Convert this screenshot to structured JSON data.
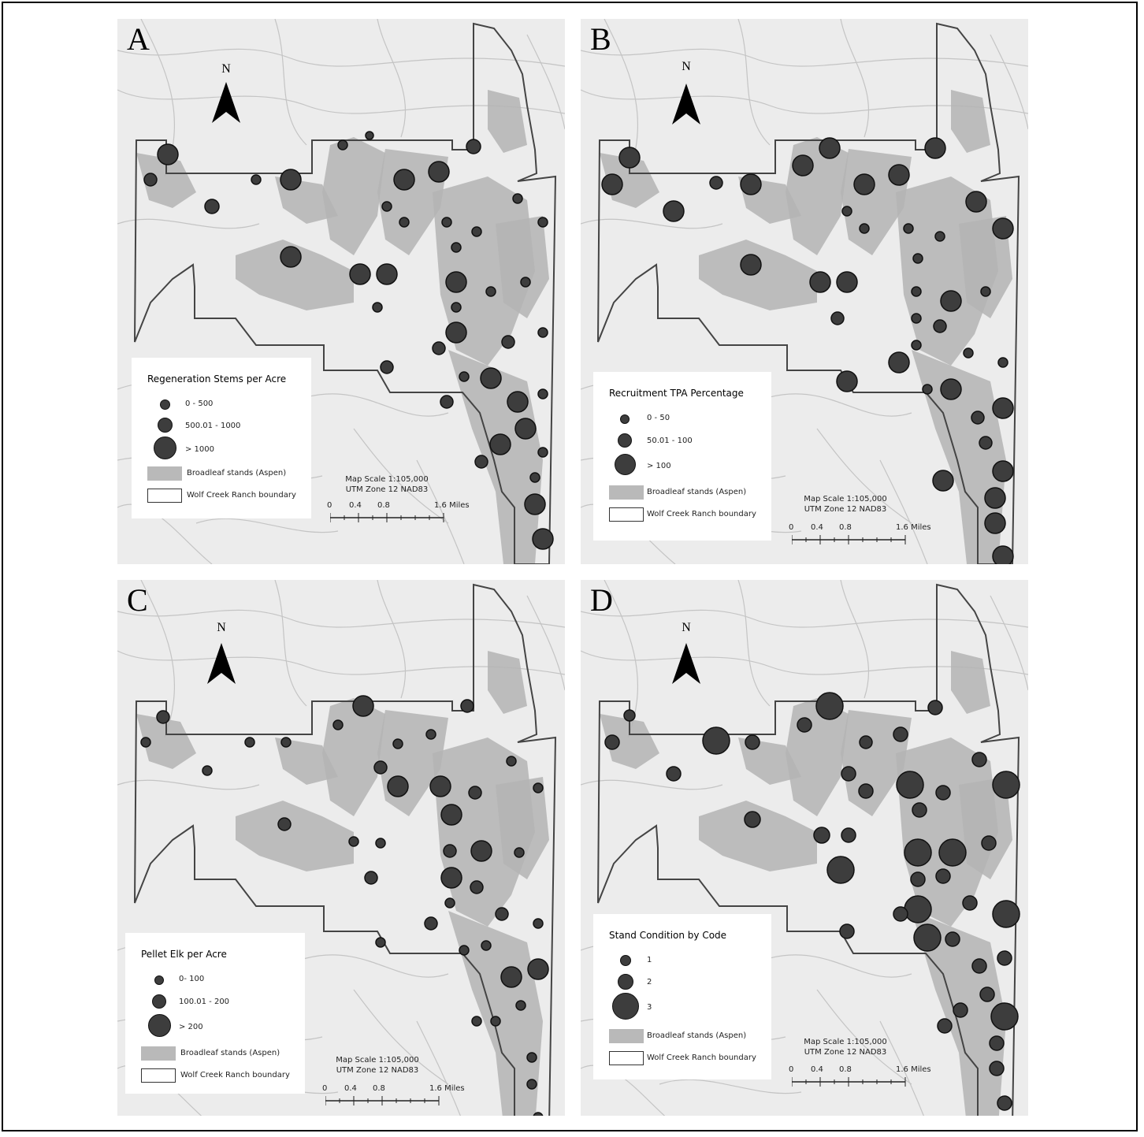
{
  "north_label": "N",
  "colors": {
    "aspen": "#b4b4b4",
    "boundary": "#444444",
    "symbol": "#3d3d3d",
    "terrain": "#ececec"
  },
  "scale": {
    "line1": "Map Scale 1:105,000",
    "line2": "UTM Zone 12 NAD83",
    "ticks": [
      "0",
      "0.4",
      "0.8",
      "1.6 Miles"
    ]
  },
  "panels": [
    {
      "letter": "A",
      "legend_title": "Regeneration Stems per Acre",
      "classes": [
        "0 - 500",
        "500.01 - 1000",
        "> 1000"
      ],
      "aspen_label": "Broadleaf stands (Aspen)",
      "boundary_label": "Wolf Creek Ranch boundary"
    },
    {
      "letter": "B",
      "legend_title": "Recruitment TPA Percentage",
      "classes": [
        "0 - 50",
        "50.01 - 100",
        "> 100"
      ],
      "aspen_label": "Broadleaf stands (Aspen)",
      "boundary_label": "Wolf Creek Ranch boundary"
    },
    {
      "letter": "C",
      "legend_title": "Pellet Elk per Acre",
      "classes": [
        "0- 100",
        "100.01 - 200",
        "> 200"
      ],
      "aspen_label": "Broadleaf stands (Aspen)",
      "boundary_label": "Wolf Creek Ranch boundary"
    },
    {
      "letter": "D",
      "legend_title": "Stand Condition by Code",
      "classes": [
        "1",
        "2",
        "3"
      ],
      "aspen_label": "Broadleaf stands (Aspen)",
      "boundary_label": "Wolf Creek Ranch boundary"
    }
  ]
}
